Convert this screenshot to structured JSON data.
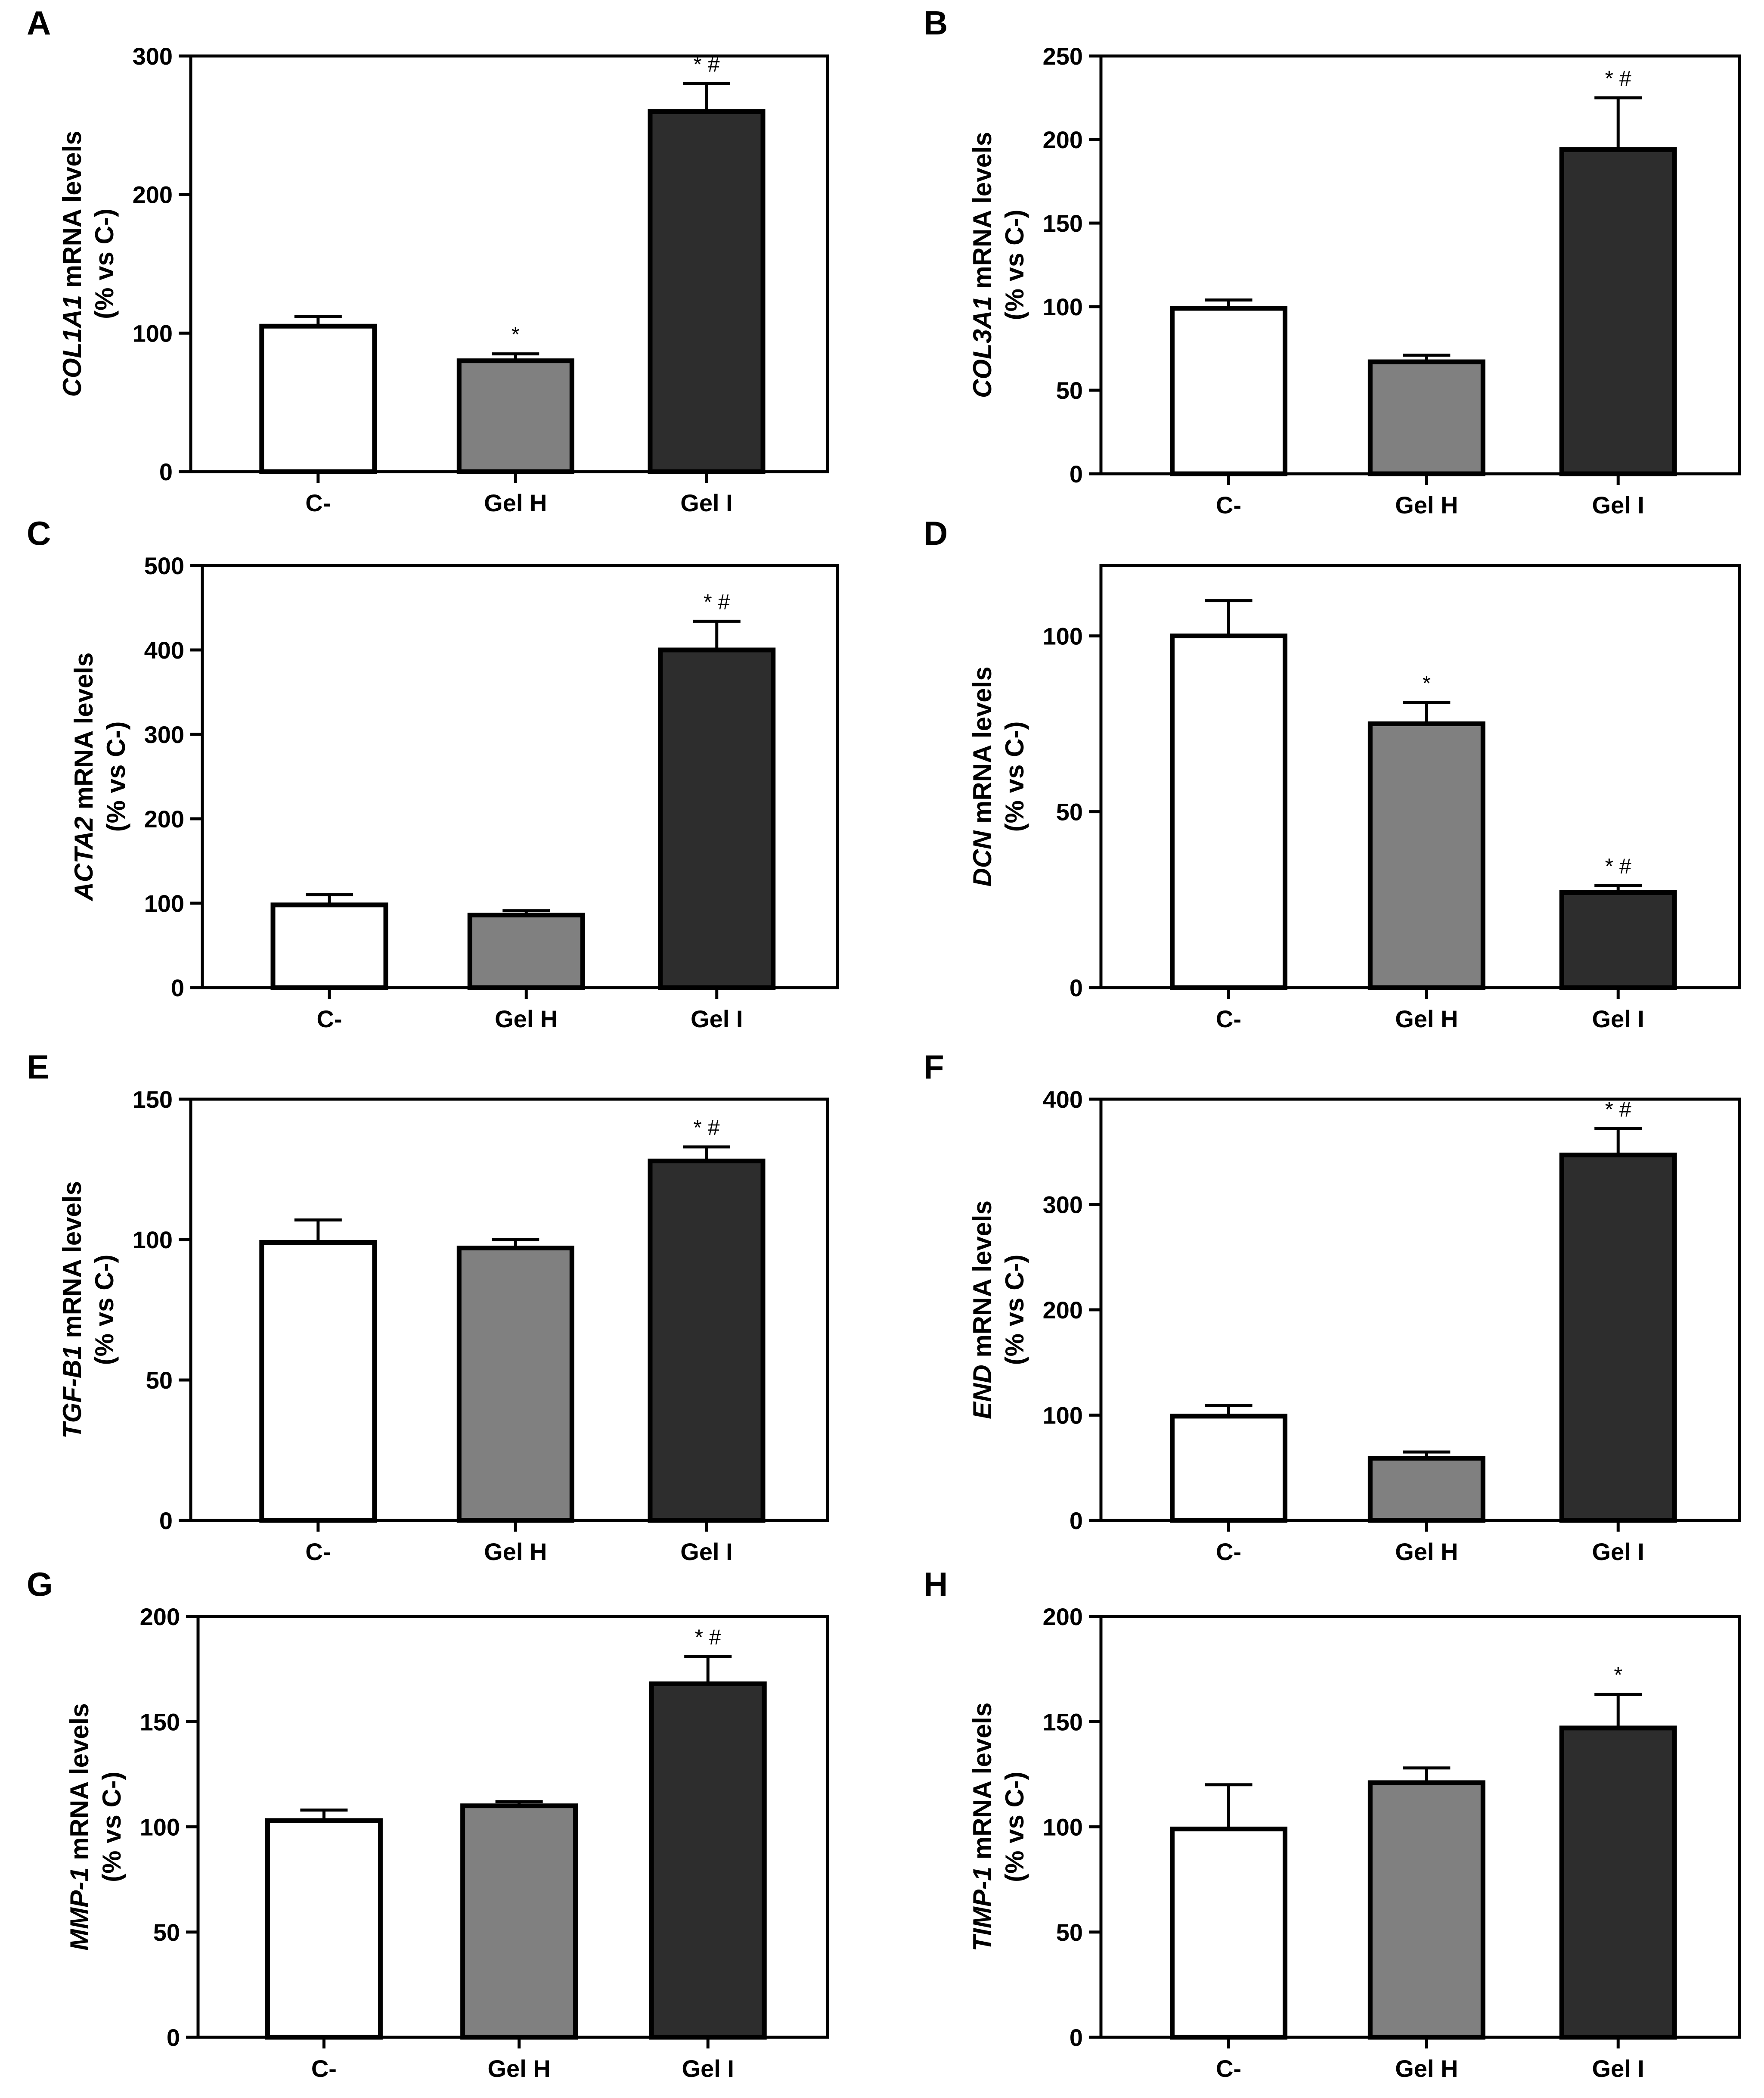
{
  "figure": {
    "categories": [
      "C-",
      "Gel H",
      "Gel I"
    ],
    "bar_colors": [
      "#ffffff",
      "#808080",
      "#2d2d2d"
    ],
    "axis_color": "#000000"
  },
  "chart_data": [
    {
      "type": "bar",
      "panel": "A",
      "gene": "COL1A1",
      "ylabel_suffix": " mRNA levels",
      "ylabel_line2": "(% vs C-)",
      "categories": [
        "C-",
        "Gel H",
        "Gel I"
      ],
      "values": [
        105,
        80,
        260
      ],
      "errors": [
        7,
        5,
        20
      ],
      "annotations": [
        "",
        "*",
        "* #"
      ],
      "ylim": [
        0,
        300
      ],
      "ticks": [
        "0",
        "100",
        "200",
        "300"
      ]
    },
    {
      "type": "bar",
      "panel": "B",
      "gene": "COL3A1",
      "ylabel_suffix": " mRNA levels",
      "ylabel_line2": "(% vs C-)",
      "categories": [
        "C-",
        "Gel H",
        "Gel I"
      ],
      "values": [
        99,
        67,
        194
      ],
      "errors": [
        5,
        4,
        31
      ],
      "annotations": [
        "",
        "",
        "* #"
      ],
      "ylim": [
        0,
        250
      ],
      "ticks": [
        "0",
        "50",
        "100",
        "150",
        "200",
        "250"
      ]
    },
    {
      "type": "bar",
      "panel": "C",
      "gene": "ACTA2",
      "ylabel_suffix": " mRNA levels",
      "ylabel_line2": "(% vs C-)",
      "categories": [
        "C-",
        "Gel H",
        "Gel I"
      ],
      "values": [
        98,
        86,
        400
      ],
      "errors": [
        12,
        5,
        34
      ],
      "annotations": [
        "",
        "",
        "* #"
      ],
      "ylim": [
        0,
        500
      ],
      "ticks": [
        "0",
        "100",
        "200",
        "300",
        "400",
        "500"
      ]
    },
    {
      "type": "bar",
      "panel": "D",
      "gene": "DCN",
      "ylabel_suffix": " mRNA levels",
      "ylabel_line2": "(% vs C-)",
      "categories": [
        "C-",
        "Gel H",
        "Gel I"
      ],
      "values": [
        100,
        75,
        27
      ],
      "errors": [
        10,
        6,
        2
      ],
      "annotations": [
        "",
        "*",
        "* #"
      ],
      "ylim": [
        0,
        120
      ],
      "ticks": [
        "0",
        "50",
        "100"
      ]
    },
    {
      "type": "bar",
      "panel": "E",
      "gene": "TGF-B1",
      "ylabel_suffix": " mRNA levels",
      "ylabel_line2": "(% vs C-)",
      "categories": [
        "C-",
        "Gel H",
        "Gel I"
      ],
      "values": [
        99,
        97,
        128
      ],
      "errors": [
        8,
        3,
        5
      ],
      "annotations": [
        "",
        "",
        "* #"
      ],
      "ylim": [
        0,
        150
      ],
      "ticks": [
        "0",
        "50",
        "100",
        "150"
      ]
    },
    {
      "type": "bar",
      "panel": "F",
      "gene": "END",
      "ylabel_suffix": " mRNA levels",
      "ylabel_line2": "(% vs C-)",
      "categories": [
        "C-",
        "Gel H",
        "Gel I"
      ],
      "values": [
        99,
        59,
        347
      ],
      "errors": [
        10,
        6,
        25
      ],
      "annotations": [
        "",
        "",
        "* #"
      ],
      "ylim": [
        0,
        400
      ],
      "ticks": [
        "0",
        "100",
        "200",
        "300",
        "400"
      ]
    },
    {
      "type": "bar",
      "panel": "G",
      "gene": "MMP-1",
      "ylabel_suffix": " mRNA levels",
      "ylabel_line2": "(% vs C-)",
      "categories": [
        "C-",
        "Gel H",
        "Gel I"
      ],
      "values": [
        103,
        110,
        168
      ],
      "errors": [
        5,
        2,
        13
      ],
      "annotations": [
        "",
        "",
        "* #"
      ],
      "ylim": [
        0,
        200
      ],
      "ticks": [
        "0",
        "50",
        "100",
        "150",
        "200"
      ]
    },
    {
      "type": "bar",
      "panel": "H",
      "gene": "TIMP-1",
      "ylabel_suffix": " mRNA levels",
      "ylabel_line2": "(% vs C-)",
      "categories": [
        "C-",
        "Gel H",
        "Gel I"
      ],
      "values": [
        99,
        121,
        147
      ],
      "errors": [
        21,
        7,
        16
      ],
      "annotations": [
        "",
        "",
        "*"
      ],
      "ylim": [
        0,
        200
      ],
      "ticks": [
        "0",
        "50",
        "100",
        "150",
        "200"
      ]
    }
  ]
}
